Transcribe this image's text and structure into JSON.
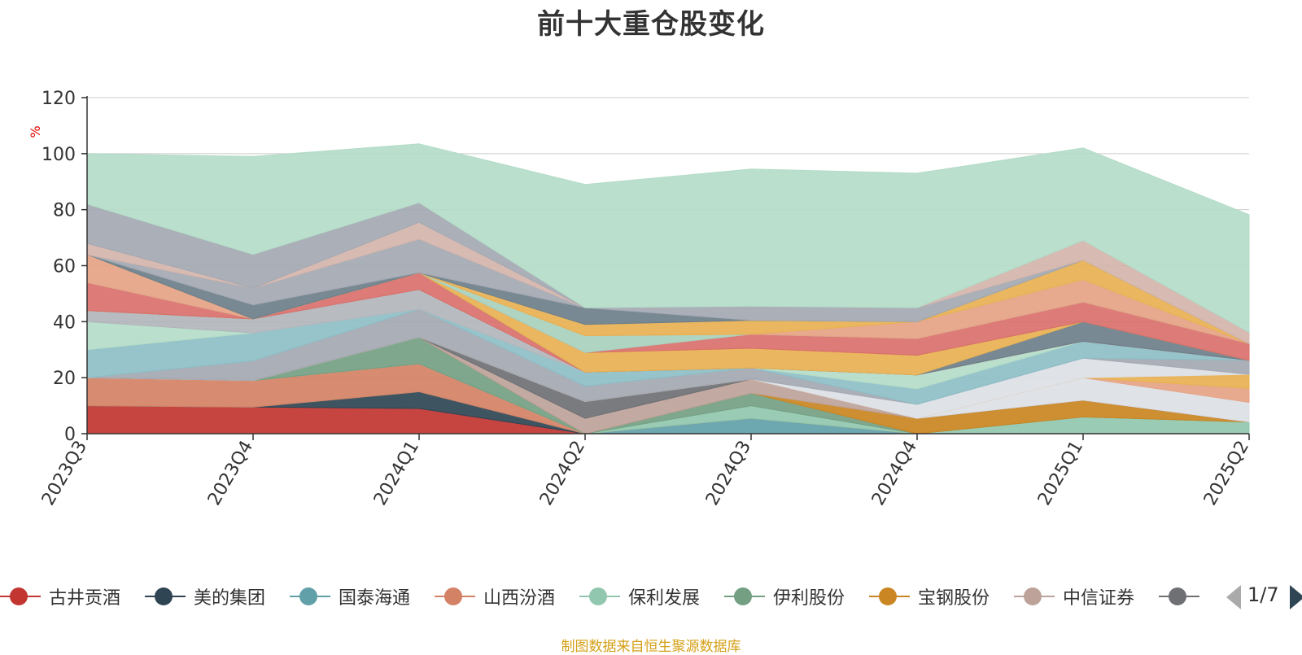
{
  "title": "前十大重仓股变化",
  "source_note": "制图数据来自恒生聚源数据库",
  "legend": {
    "items": [
      {
        "label": "古井贡酒",
        "color": "#c23531"
      },
      {
        "label": "美的集团",
        "color": "#2f4554"
      },
      {
        "label": "国泰海通",
        "color": "#61a0a8"
      },
      {
        "label": "山西汾酒",
        "color": "#d48265"
      },
      {
        "label": "保利发展",
        "color": "#91c7ae"
      },
      {
        "label": "伊利股份",
        "color": "#749f83"
      },
      {
        "label": "宝钢股份",
        "color": "#ca8622"
      },
      {
        "label": "中信证券",
        "color": "#bda29a"
      },
      {
        "label": "",
        "color": "#6e7074"
      }
    ],
    "pager": "1/7"
  },
  "chart_data": {
    "type": "area",
    "stacked": true,
    "title": "前十大重仓股变化",
    "ylabel": "%",
    "ylim": [
      0,
      120
    ],
    "yticks": [
      0,
      20,
      40,
      60,
      80,
      100,
      120
    ],
    "categories": [
      "2023Q3",
      "2023Q4",
      "2024Q1",
      "2024Q2",
      "2024Q3",
      "2024Q4",
      "2025Q1",
      "2025Q2"
    ],
    "series": [
      {
        "color": "#c23531",
        "values": [
          10,
          9.5,
          9,
          0,
          0,
          0,
          0,
          0
        ]
      },
      {
        "color": "#2f4554",
        "values": [
          0,
          0,
          6,
          0,
          0,
          0,
          0,
          0
        ]
      },
      {
        "color": "#61a0a8",
        "values": [
          0,
          0,
          0,
          0,
          5.5,
          0,
          0,
          0
        ]
      },
      {
        "color": "#d48265",
        "values": [
          10,
          9.5,
          10,
          0,
          0,
          0,
          0,
          0
        ]
      },
      {
        "color": "#91c7ae",
        "values": [
          0,
          0,
          0,
          0,
          4.5,
          0,
          6,
          4.2
        ]
      },
      {
        "color": "#749f83",
        "values": [
          0,
          0,
          9.5,
          0,
          4.5,
          0,
          0,
          0
        ]
      },
      {
        "color": "#ca8622",
        "values": [
          0,
          0,
          0,
          0,
          0,
          5.5,
          6,
          0
        ]
      },
      {
        "color": "#bda29a",
        "values": [
          0,
          0,
          0,
          5.5,
          5,
          0,
          0,
          0
        ]
      },
      {
        "color": "#6e7074",
        "values": [
          0,
          0,
          0,
          6,
          0,
          0,
          0,
          0
        ]
      },
      {
        "color": "#dcdfe5",
        "values": [
          0,
          0,
          0,
          0,
          0,
          0,
          8,
          7
        ]
      },
      {
        "color": "#e6a385",
        "values": [
          0,
          0,
          0,
          0,
          0,
          0,
          0,
          5
        ]
      },
      {
        "color": "#e8b152",
        "values": [
          0,
          0,
          0,
          0,
          0,
          0,
          0,
          5
        ]
      },
      {
        "color": "#dcdfe5",
        "values": [
          0,
          0,
          0,
          0,
          0,
          5,
          7,
          0
        ]
      },
      {
        "color": "#a3a8b2",
        "values": [
          0,
          7,
          10,
          5.5,
          4,
          0,
          0,
          5
        ]
      },
      {
        "color": "#8ebec6",
        "values": [
          10,
          10,
          0,
          5,
          0,
          5.5,
          6,
          0
        ]
      },
      {
        "color": "#b4dcc8",
        "values": [
          10,
          0,
          0,
          0,
          0,
          5,
          0,
          0
        ]
      },
      {
        "color": "#b2b5bb",
        "values": [
          4,
          5,
          7,
          0,
          0,
          0,
          0,
          0
        ]
      },
      {
        "color": "#d9706b",
        "values": [
          0,
          0,
          6,
          0,
          0,
          0,
          0,
          0
        ]
      },
      {
        "color": "#6d7f8a",
        "values": [
          0,
          0,
          0,
          0,
          0,
          0,
          7,
          0
        ]
      },
      {
        "color": "#e8b152",
        "values": [
          0,
          0,
          0,
          7,
          7,
          7,
          0,
          0
        ]
      },
      {
        "color": "#d9706b",
        "values": [
          10,
          0,
          0,
          0,
          5,
          6,
          7,
          6
        ]
      },
      {
        "color": "#a8d1bd",
        "values": [
          0,
          0,
          0,
          6,
          0,
          0,
          0,
          0
        ]
      },
      {
        "color": "#e6a385",
        "values": [
          10,
          0,
          0,
          0,
          0,
          6,
          8,
          0
        ]
      },
      {
        "color": "#e8b152",
        "values": [
          0,
          0,
          0,
          4,
          5,
          0,
          7,
          0
        ]
      },
      {
        "color": "#6d7f8a",
        "values": [
          0,
          5,
          0,
          6,
          0,
          0,
          0,
          0
        ]
      },
      {
        "color": "#a3a8b2",
        "values": [
          0,
          6,
          12,
          0,
          5,
          5,
          0,
          0
        ]
      },
      {
        "color": "#d4b5ac",
        "values": [
          4,
          0,
          6,
          0,
          0,
          0,
          7,
          4
        ]
      },
      {
        "color": "#a3a8b2",
        "values": [
          14,
          12,
          7,
          0,
          0,
          0,
          0,
          0
        ]
      },
      {
        "color": "#b4dcc8",
        "values": [
          18,
          35,
          21,
          44,
          49,
          48,
          33,
          42
        ]
      }
    ]
  }
}
